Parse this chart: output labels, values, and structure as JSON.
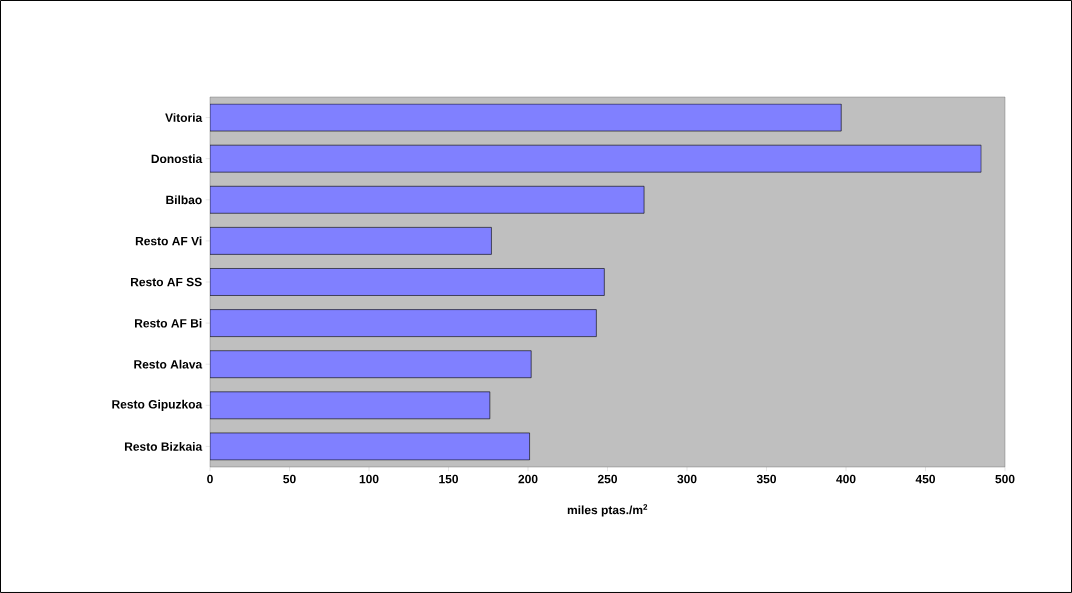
{
  "chart_data": {
    "type": "bar",
    "orientation": "horizontal",
    "categories": [
      "Vitoria",
      "Donostia",
      "Bilbao",
      "Resto AF Vi",
      "Resto AF SS",
      "Resto AF Bi",
      "Resto Alava",
      "Resto Gipuzkoa",
      "Resto Bizkaia"
    ],
    "values": [
      397,
      485,
      273,
      177,
      248,
      243,
      202,
      176,
      201
    ],
    "color": "#8080ff",
    "xlabel": "miles ptas./m$^{2}$",
    "xlim": [
      0,
      500
    ],
    "xticks": [
      0,
      50,
      100,
      150,
      200,
      250,
      300,
      350,
      400,
      450,
      500
    ],
    "grid": false
  }
}
